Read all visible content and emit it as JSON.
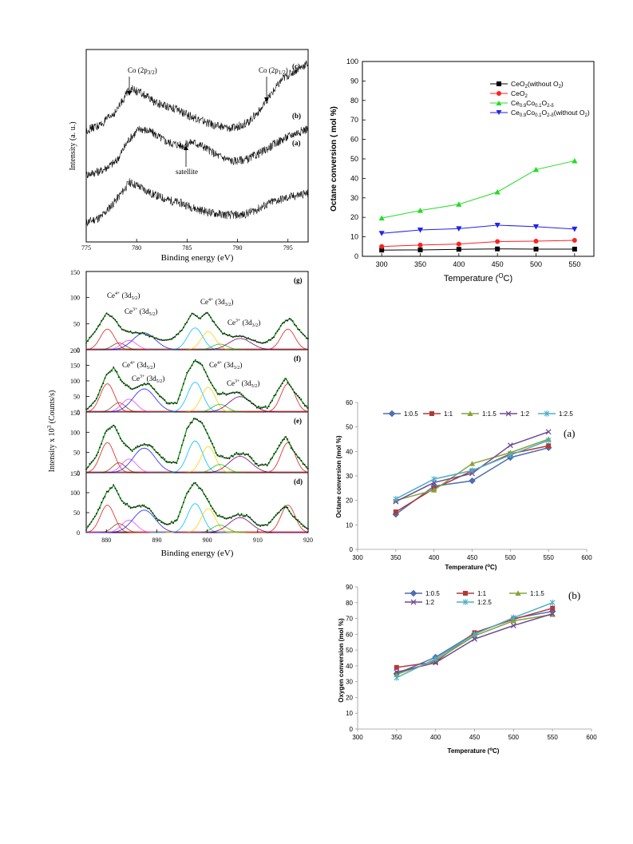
{
  "chart_data": [
    {
      "id": "xps_co2p",
      "type": "line",
      "xlabel": "Binding energy (eV)",
      "ylabel": "Intensity (a. u.)",
      "xlim": [
        775,
        797
      ],
      "xticks": [
        775,
        780,
        785,
        790,
        795
      ],
      "series": [
        {
          "label": "(a)",
          "points": [
            [
              775,
              0.1
            ],
            [
              776.5,
              0.13
            ],
            [
              778,
              0.22
            ],
            [
              779.3,
              0.31
            ],
            [
              780.2,
              0.29
            ],
            [
              781.5,
              0.25
            ],
            [
              783,
              0.22
            ],
            [
              784.5,
              0.2
            ],
            [
              786,
              0.17
            ],
            [
              787.5,
              0.15
            ],
            [
              789,
              0.14
            ],
            [
              790.5,
              0.14
            ],
            [
              792,
              0.17
            ],
            [
              793.5,
              0.21
            ],
            [
              795,
              0.23
            ],
            [
              796.5,
              0.25
            ],
            [
              797,
              0.25
            ]
          ]
        },
        {
          "label": "(b)",
          "points": [
            [
              775,
              0.35
            ],
            [
              776.5,
              0.37
            ],
            [
              778,
              0.42
            ],
            [
              779.2,
              0.53
            ],
            [
              780.3,
              0.59
            ],
            [
              781.5,
              0.57
            ],
            [
              783,
              0.52
            ],
            [
              784.5,
              0.5
            ],
            [
              785.5,
              0.52
            ],
            [
              786.5,
              0.5
            ],
            [
              788,
              0.45
            ],
            [
              789.5,
              0.42
            ],
            [
              791,
              0.43
            ],
            [
              792.5,
              0.47
            ],
            [
              794,
              0.52
            ],
            [
              795.5,
              0.56
            ],
            [
              797,
              0.59
            ]
          ]
        },
        {
          "label": "(c)",
          "points": [
            [
              775,
              0.58
            ],
            [
              776.5,
              0.61
            ],
            [
              778,
              0.68
            ],
            [
              779.3,
              0.8
            ],
            [
              780.5,
              0.77
            ],
            [
              782,
              0.72
            ],
            [
              783.5,
              0.7
            ],
            [
              785,
              0.66
            ],
            [
              786.5,
              0.63
            ],
            [
              788,
              0.6
            ],
            [
              789.5,
              0.59
            ],
            [
              791,
              0.62
            ],
            [
              792.5,
              0.7
            ],
            [
              793.5,
              0.78
            ],
            [
              794.5,
              0.85
            ],
            [
              796,
              0.9
            ],
            [
              797,
              0.93
            ]
          ]
        }
      ],
      "annotations": [
        "Co (2p 3/2)",
        "Co (2p 1/2)",
        "satellite"
      ]
    },
    {
      "id": "octane_conversion_temp",
      "type": "line",
      "xlabel": "Temperature (°C)",
      "ylabel": "Octane conversion ( mol %)",
      "xlim": [
        275,
        575
      ],
      "ylim": [
        0,
        100
      ],
      "xticks": [
        300,
        350,
        400,
        450,
        500,
        550
      ],
      "yticks": [
        0,
        10,
        20,
        30,
        40,
        50,
        60,
        70,
        80,
        90,
        100
      ],
      "x": [
        300,
        350,
        400,
        450,
        500,
        550
      ],
      "legend_position": "top-right",
      "series": [
        {
          "name": "CeO2(without O2)",
          "color": "#000000",
          "marker": "square",
          "values": [
            3.2,
            3.3,
            3.6,
            3.8,
            3.7,
            3.7
          ]
        },
        {
          "name": "CeO2",
          "color": "#ff2020",
          "marker": "circle",
          "values": [
            5.0,
            5.8,
            6.3,
            7.6,
            7.8,
            8.2
          ]
        },
        {
          "name": "Ce0.9Co0.1O2-δ",
          "color": "#22dd22",
          "marker": "triangle-up",
          "values": [
            19.6,
            23.5,
            26.7,
            33.0,
            44.5,
            49.0
          ]
        },
        {
          "name": "Ce0.9Co0.1O2-δ(without O2)",
          "color": "#2222ee",
          "marker": "triangle-down",
          "values": [
            11.8,
            13.5,
            14.2,
            16.0,
            15.2,
            14.0
          ]
        }
      ]
    },
    {
      "id": "xps_ce3d",
      "type": "line",
      "xlabel": "Binding energy (eV)",
      "ylabel": "Intensity x 10 3 (Counts/s)",
      "xlim": [
        876,
        920
      ],
      "xticks": [
        880,
        890,
        900,
        910,
        920
      ],
      "yticks": [
        0,
        50,
        100,
        150
      ],
      "panels": [
        {
          "label": "(g)",
          "envelope": [
            [
              876,
              14
            ],
            [
              878,
              38
            ],
            [
              880,
              70
            ],
            [
              881.5,
              60
            ],
            [
              883,
              40
            ],
            [
              885,
              33
            ],
            [
              887,
              32
            ],
            [
              889,
              25
            ],
            [
              891,
              18
            ],
            [
              893,
              20
            ],
            [
              895,
              38
            ],
            [
              897,
              70
            ],
            [
              898.5,
              60
            ],
            [
              900,
              72
            ],
            [
              901.5,
              50
            ],
            [
              903,
              32
            ],
            [
              905,
              25
            ],
            [
              907,
              26
            ],
            [
              909,
              18
            ],
            [
              911,
              12
            ],
            [
              913,
              22
            ],
            [
              915,
              52
            ],
            [
              916.5,
              60
            ],
            [
              918,
              40
            ],
            [
              920,
              20
            ]
          ],
          "annotations": [
            "Ce4+ (3d 5/2)",
            "Ce3+ (3d 5/2)",
            "Ce4+ (3d 3/2)",
            "Ce3+ (3d 3/2)"
          ]
        },
        {
          "label": "(f)",
          "envelope": [
            [
              876,
              6
            ],
            [
              878,
              40
            ],
            [
              880,
              120
            ],
            [
              881.5,
              142
            ],
            [
              883,
              100
            ],
            [
              885,
              72
            ],
            [
              887,
              88
            ],
            [
              888.5,
              90
            ],
            [
              890,
              62
            ],
            [
              892,
              30
            ],
            [
              894,
              28
            ],
            [
              896,
              125
            ],
            [
              897.5,
              165
            ],
            [
              899,
              150
            ],
            [
              900.5,
              100
            ],
            [
              902,
              60
            ],
            [
              904,
              58
            ],
            [
              906,
              65
            ],
            [
              908,
              40
            ],
            [
              910,
              15
            ],
            [
              912,
              15
            ],
            [
              914,
              70
            ],
            [
              915.5,
              110
            ],
            [
              917,
              70
            ],
            [
              920,
              10
            ]
          ],
          "annotations": [
            "Ce4+ (3d 5/2)",
            "Ce3+ (3d 5/2)",
            "Ce4+ (3d 3/2)",
            "Ce3+ (3d 3/2)"
          ]
        },
        {
          "label": "(e)",
          "envelope": [
            [
              876,
              8
            ],
            [
              878,
              40
            ],
            [
              880,
              105
            ],
            [
              881.5,
              118
            ],
            [
              883,
              80
            ],
            [
              885,
              55
            ],
            [
              887,
              68
            ],
            [
              888.5,
              70
            ],
            [
              890,
              50
            ],
            [
              892,
              25
            ],
            [
              894,
              26
            ],
            [
              896,
              110
            ],
            [
              897.5,
              135
            ],
            [
              899,
              122
            ],
            [
              900.5,
              85
            ],
            [
              902,
              42
            ],
            [
              904,
              35
            ],
            [
              906,
              48
            ],
            [
              908,
              45
            ],
            [
              910,
              18
            ],
            [
              912,
              20
            ],
            [
              914,
              60
            ],
            [
              915.5,
              90
            ],
            [
              917,
              55
            ],
            [
              920,
              8
            ]
          ]
        },
        {
          "label": "(d)",
          "envelope": [
            [
              876,
              8
            ],
            [
              878,
              45
            ],
            [
              880,
              100
            ],
            [
              881.5,
              118
            ],
            [
              883,
              80
            ],
            [
              885,
              62
            ],
            [
              887,
              68
            ],
            [
              888.5,
              60
            ],
            [
              890,
              35
            ],
            [
              892,
              20
            ],
            [
              894,
              30
            ],
            [
              896,
              100
            ],
            [
              897.5,
              125
            ],
            [
              899,
              105
            ],
            [
              900.5,
              72
            ],
            [
              902,
              42
            ],
            [
              904,
              35
            ],
            [
              906,
              45
            ],
            [
              908,
              42
            ],
            [
              910,
              18
            ],
            [
              912,
              20
            ],
            [
              914,
              48
            ],
            [
              915.5,
              68
            ],
            [
              917,
              40
            ],
            [
              920,
              8
            ]
          ]
        }
      ]
    },
    {
      "id": "octane_ratio",
      "type": "line",
      "panel_label": "(a)",
      "xlabel": "Temperature (°C)",
      "ylabel": "Octane conversion (mol %)",
      "xlim": [
        300,
        600
      ],
      "ylim": [
        0,
        60
      ],
      "xticks": [
        300,
        350,
        400,
        450,
        500,
        550,
        600
      ],
      "yticks": [
        0,
        10,
        20,
        30,
        40,
        50,
        60
      ],
      "x": [
        350,
        400,
        450,
        500,
        550
      ],
      "legend_position": "top",
      "series": [
        {
          "name": "1:0.5",
          "color": "#4f6fb5",
          "marker": "diamond",
          "values": [
            14.3,
            25.8,
            28.0,
            37.5,
            41.5
          ]
        },
        {
          "name": "1:1",
          "color": "#b03a3a",
          "marker": "square",
          "values": [
            15.3,
            24.8,
            32.0,
            39.0,
            42.3
          ]
        },
        {
          "name": "1:1.5",
          "color": "#86a33b",
          "marker": "triangle",
          "values": [
            20.0,
            24.2,
            35.0,
            39.5,
            45.0
          ]
        },
        {
          "name": "1:2",
          "color": "#6e4a93",
          "marker": "x",
          "values": [
            19.5,
            27.3,
            31.0,
            42.5,
            48.0
          ]
        },
        {
          "name": "1:2.5",
          "color": "#4ab0c8",
          "marker": "star",
          "values": [
            20.6,
            28.7,
            32.2,
            38.5,
            44.5
          ]
        }
      ]
    },
    {
      "id": "oxygen_ratio",
      "type": "line",
      "panel_label": "(b)",
      "xlabel": "Temperature (°C)",
      "ylabel": "Oxygen conversion (mol %)",
      "xlim": [
        300,
        600
      ],
      "ylim": [
        0,
        90
      ],
      "xticks": [
        300,
        350,
        400,
        450,
        500,
        550,
        600
      ],
      "yticks": [
        0,
        10,
        20,
        30,
        40,
        50,
        60,
        70,
        80,
        90
      ],
      "x": [
        350,
        400,
        450,
        500,
        550
      ],
      "legend_position": "top",
      "series": [
        {
          "name": "1:0.5",
          "color": "#4f6fb5",
          "marker": "diamond",
          "values": [
            35.0,
            45.5,
            60.5,
            70.0,
            74.5
          ]
        },
        {
          "name": "1:1",
          "color": "#b03a3a",
          "marker": "square",
          "values": [
            39.0,
            42.5,
            61.0,
            69.5,
            76.5
          ]
        },
        {
          "name": "1:1.5",
          "color": "#86a33b",
          "marker": "triangle",
          "values": [
            34.5,
            43.5,
            59.0,
            68.5,
            72.5
          ]
        },
        {
          "name": "1:2",
          "color": "#6e4a93",
          "marker": "x",
          "values": [
            36.0,
            42.0,
            57.0,
            65.5,
            73.0
          ]
        },
        {
          "name": "1:2.5",
          "color": "#4ab0c8",
          "marker": "star",
          "values": [
            32.5,
            44.5,
            60.0,
            70.5,
            80.0
          ]
        }
      ]
    }
  ]
}
